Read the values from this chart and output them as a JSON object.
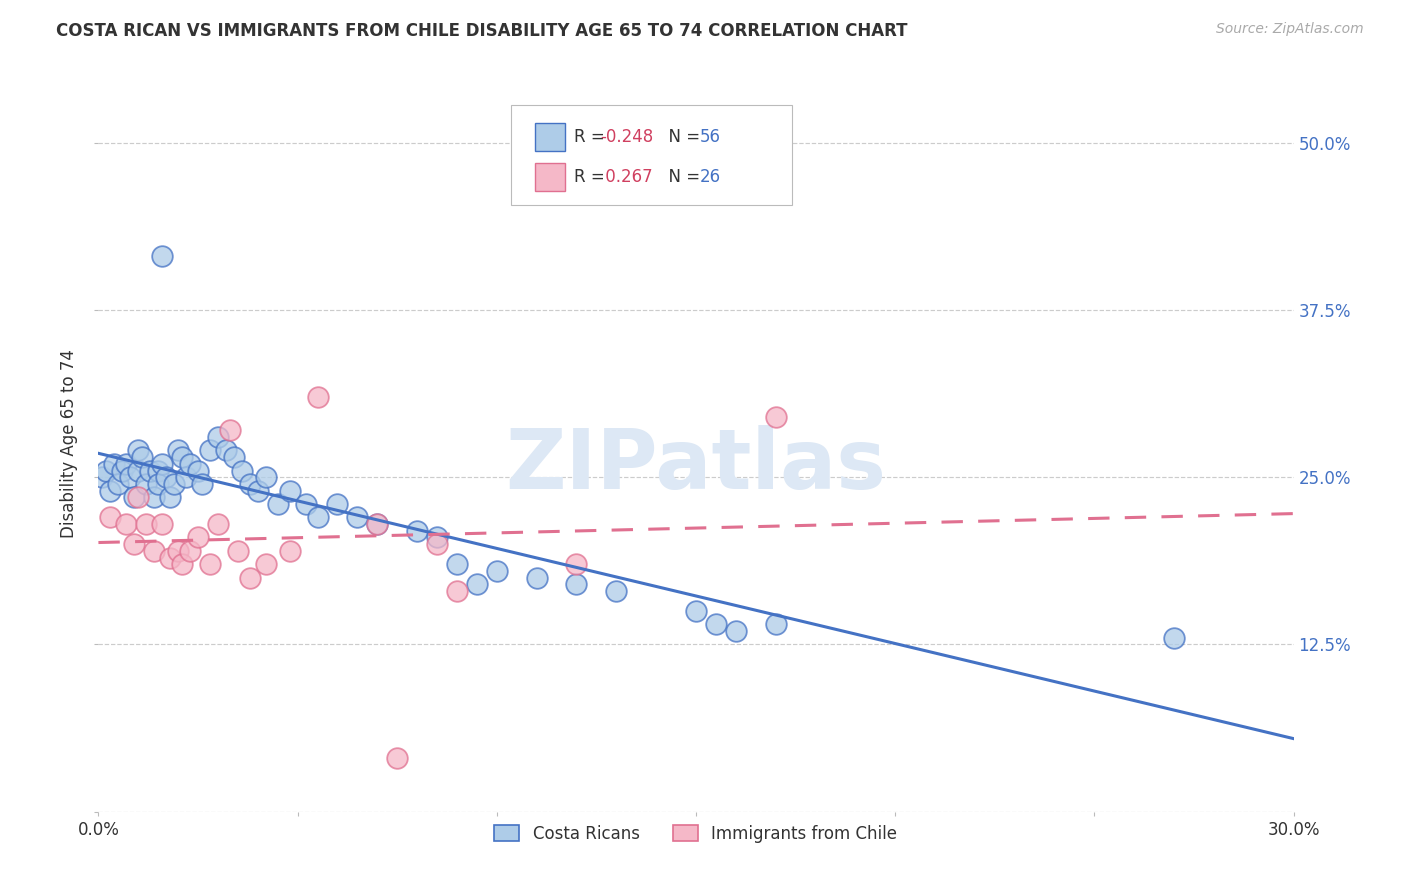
{
  "title": "COSTA RICAN VS IMMIGRANTS FROM CHILE DISABILITY AGE 65 TO 74 CORRELATION CHART",
  "source": "Source: ZipAtlas.com",
  "ylabel": "Disability Age 65 to 74",
  "ytick_labels": [
    "",
    "12.5%",
    "25.0%",
    "37.5%",
    "50.0%"
  ],
  "ytick_values": [
    0.0,
    0.125,
    0.25,
    0.375,
    0.5
  ],
  "xtick_positions": [
    0.0,
    0.05,
    0.1,
    0.15,
    0.2,
    0.25,
    0.3
  ],
  "xmin": 0.0,
  "xmax": 0.3,
  "ymin": 0.0,
  "ymax": 0.55,
  "legend_label1": "Costa Ricans",
  "legend_label2": "Immigrants from Chile",
  "R1": -0.248,
  "N1": 56,
  "R2": 0.267,
  "N2": 26,
  "color_blue": "#aecce8",
  "color_pink": "#f5b8c8",
  "line_blue": "#4472c4",
  "line_pink": "#e07090",
  "text_color": "#333333",
  "source_color": "#aaaaaa",
  "grid_color": "#cccccc",
  "watermark": "ZIPatlas",
  "watermark_color": "#dde8f5",
  "background_color": "#ffffff",
  "blue_x": [
    0.001,
    0.002,
    0.003,
    0.004,
    0.005,
    0.006,
    0.007,
    0.008,
    0.009,
    0.01,
    0.01,
    0.011,
    0.012,
    0.013,
    0.014,
    0.015,
    0.015,
    0.016,
    0.017,
    0.018,
    0.019,
    0.02,
    0.021,
    0.022,
    0.023,
    0.025,
    0.026,
    0.028,
    0.03,
    0.032,
    0.034,
    0.036,
    0.038,
    0.04,
    0.042,
    0.045,
    0.048,
    0.052,
    0.055,
    0.06,
    0.065,
    0.07,
    0.08,
    0.085,
    0.09,
    0.095,
    0.1,
    0.11,
    0.12,
    0.13,
    0.15,
    0.155,
    0.16,
    0.17,
    0.27,
    0.016
  ],
  "blue_y": [
    0.25,
    0.255,
    0.24,
    0.26,
    0.245,
    0.255,
    0.26,
    0.25,
    0.235,
    0.27,
    0.255,
    0.265,
    0.245,
    0.255,
    0.235,
    0.255,
    0.245,
    0.26,
    0.25,
    0.235,
    0.245,
    0.27,
    0.265,
    0.25,
    0.26,
    0.255,
    0.245,
    0.27,
    0.28,
    0.27,
    0.265,
    0.255,
    0.245,
    0.24,
    0.25,
    0.23,
    0.24,
    0.23,
    0.22,
    0.23,
    0.22,
    0.215,
    0.21,
    0.205,
    0.185,
    0.17,
    0.18,
    0.175,
    0.17,
    0.165,
    0.15,
    0.14,
    0.135,
    0.14,
    0.13,
    0.415
  ],
  "pink_x": [
    0.003,
    0.007,
    0.009,
    0.01,
    0.012,
    0.014,
    0.016,
    0.018,
    0.02,
    0.021,
    0.023,
    0.025,
    0.028,
    0.03,
    0.033,
    0.035,
    0.038,
    0.042,
    0.048,
    0.055,
    0.07,
    0.085,
    0.09,
    0.12,
    0.17,
    0.075
  ],
  "pink_y": [
    0.22,
    0.215,
    0.2,
    0.235,
    0.215,
    0.195,
    0.215,
    0.19,
    0.195,
    0.185,
    0.195,
    0.205,
    0.185,
    0.215,
    0.285,
    0.195,
    0.175,
    0.185,
    0.195,
    0.31,
    0.215,
    0.2,
    0.165,
    0.185,
    0.295,
    0.04
  ]
}
